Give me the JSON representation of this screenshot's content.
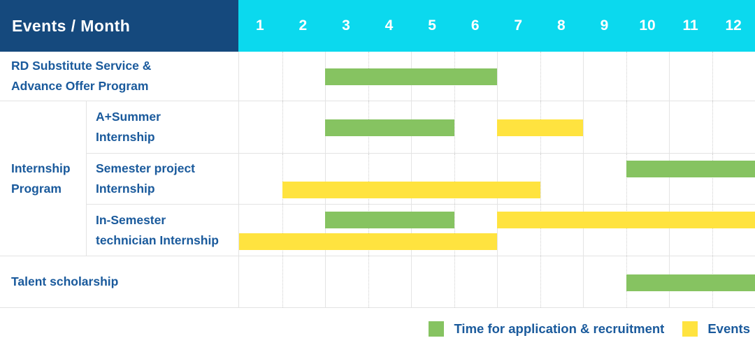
{
  "header": {
    "title": "Events / Month"
  },
  "colors": {
    "header_navy": "#15497D",
    "header_cyan": "#0BD9EE",
    "label_blue": "#1A5A9C",
    "application_green": "#86C361",
    "event_yellow": "#FFE33F",
    "grid_line": "#E3E3E3"
  },
  "chart_data": {
    "type": "gantt",
    "title": "Events / Month",
    "months": [
      "1",
      "2",
      "3",
      "4",
      "5",
      "6",
      "7",
      "8",
      "9",
      "10",
      "11",
      "12"
    ],
    "x_range": [
      1,
      12
    ],
    "grid": true,
    "group_label": "Internship\nProgram",
    "rows": [
      {
        "label": "RD Substitute Service &\nAdvance Offer Program",
        "group": null,
        "bars": [
          {
            "type": "application",
            "start_month": 3,
            "end_month": 6,
            "lane": "middle"
          }
        ]
      },
      {
        "label": "A+Summer\nInternship",
        "group": "Internship Program",
        "bars": [
          {
            "type": "application",
            "start_month": 3,
            "end_month": 5,
            "lane": "middle"
          },
          {
            "type": "event",
            "start_month": 7,
            "end_month": 8,
            "lane": "middle"
          }
        ]
      },
      {
        "label": "Semester project\nInternship",
        "group": "Internship Program",
        "bars": [
          {
            "type": "application",
            "start_month": 10,
            "end_month": 12,
            "lane": "top"
          },
          {
            "type": "event",
            "start_month": 2,
            "end_month": 7,
            "lane": "bottom"
          }
        ]
      },
      {
        "label": "In-Semester\ntechnician Internship",
        "group": "Internship Program",
        "bars": [
          {
            "type": "application",
            "start_month": 3,
            "end_month": 5,
            "lane": "top"
          },
          {
            "type": "event",
            "start_month": 7,
            "end_month": 12,
            "lane": "top"
          },
          {
            "type": "event",
            "start_month": 1,
            "end_month": 6,
            "lane": "bottom"
          }
        ]
      },
      {
        "label": "Talent scholarship",
        "group": null,
        "bars": [
          {
            "type": "application",
            "start_month": 10,
            "end_month": 12,
            "lane": "middle"
          }
        ]
      }
    ],
    "legend": [
      {
        "type": "application",
        "label": "Time for application & recruitment",
        "color": "#86C361"
      },
      {
        "type": "event",
        "label": "Events",
        "color": "#FFE33F"
      }
    ],
    "legend_position": "bottom-right"
  }
}
